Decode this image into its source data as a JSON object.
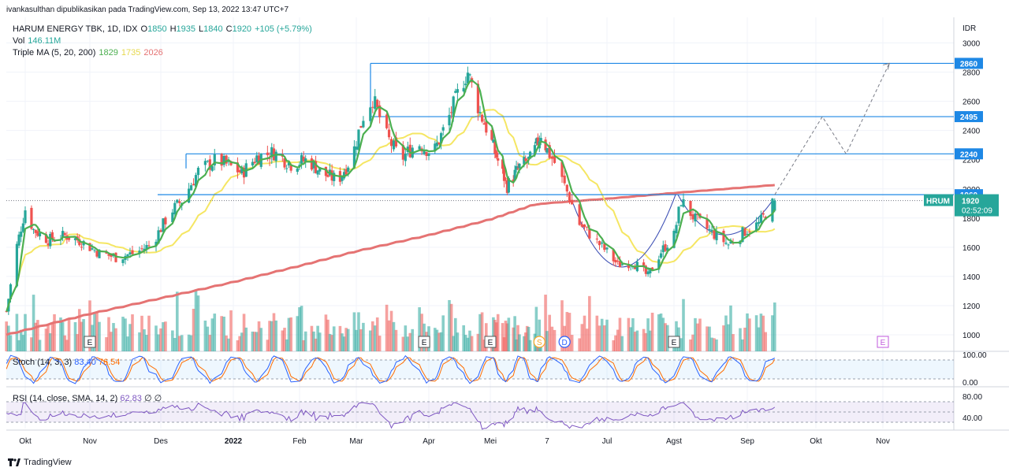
{
  "attribution": "ivankasulthan dipublikasikan pada TradingView.com, Sep 13, 2022 13:47 UTC+7",
  "legend": {
    "symbol": "HARUM ENERGY TBK, 1D, IDX",
    "o_label": "O",
    "o": "1850",
    "h_label": "H",
    "h": "1935",
    "l_label": "L",
    "l": "1840",
    "c_label": "C",
    "c": "1920",
    "change": "+105 (+5.79%)",
    "vol_label": "Vol",
    "vol": "146.11M",
    "ma_label": "Triple MA (5, 20, 200)",
    "ma5": "1829",
    "ma20": "1735",
    "ma200": "2026"
  },
  "stoch": {
    "label": "Stoch (14, 3, 3)",
    "k": "83.40",
    "d": "76.54"
  },
  "rsi": {
    "label": "RSI (14, close, SMA, 14, 2)",
    "value": "62.83",
    "x1": "∅",
    "x2": "∅"
  },
  "brand": "TradingView",
  "colors": {
    "up": "#26a69a",
    "down": "#ef5350",
    "level": "#1e88e5",
    "ma5": "#4caf50",
    "ma20": "#f5e663",
    "ma200": "#e57373",
    "stoch_k": "#2962ff",
    "stoch_d": "#ff6d00",
    "rsi": "#7e57c2"
  },
  "chart_data": [
    {
      "type": "candlestick",
      "currency": "IDR",
      "y_ticks": [
        1000,
        1200,
        1400,
        1600,
        1800,
        2000,
        2200,
        2400,
        2600,
        2800,
        3000
      ],
      "ylim": [
        900,
        3080
      ],
      "x_ticks": [
        "Okt",
        "Nov",
        "Des",
        "2022",
        "Feb",
        "Mar",
        "Apr",
        "Mei",
        "7",
        "Jul",
        "Agst",
        "Sep",
        "Okt",
        "Nov"
      ],
      "horizontal_levels": [
        2860,
        2495,
        2240,
        1960
      ],
      "last_price": {
        "symbol": "HRUM",
        "value": 1920,
        "countdown": "02:52:09"
      },
      "events": [
        "E",
        "E",
        "E",
        "S",
        "D",
        "E",
        "E"
      ],
      "projection_path": [
        {
          "date": "2022-09-13",
          "value": 1960
        },
        {
          "date": "2022-10-04",
          "value": 2495
        },
        {
          "date": "2022-10-15",
          "value": 2240
        },
        {
          "date": "2022-11-04",
          "value": 2860
        }
      ],
      "closes_series": [
        {
          "date": "2021-09-22",
          "value": 1160
        },
        {
          "date": "2021-09-27",
          "value": 1610
        },
        {
          "date": "2021-10-01",
          "value": 1860
        },
        {
          "date": "2021-10-05",
          "value": 1720
        },
        {
          "date": "2021-10-12",
          "value": 1650
        },
        {
          "date": "2021-10-20",
          "value": 1680
        },
        {
          "date": "2021-10-28",
          "value": 1640
        },
        {
          "date": "2021-11-05",
          "value": 1560
        },
        {
          "date": "2021-11-12",
          "value": 1530
        },
        {
          "date": "2021-11-20",
          "value": 1560
        },
        {
          "date": "2021-11-27",
          "value": 1620
        },
        {
          "date": "2021-12-05",
          "value": 1840
        },
        {
          "date": "2021-12-10",
          "value": 1920
        },
        {
          "date": "2021-12-17",
          "value": 2120
        },
        {
          "date": "2021-12-25",
          "value": 2200
        },
        {
          "date": "2022-01-05",
          "value": 2110
        },
        {
          "date": "2022-01-12",
          "value": 2220
        },
        {
          "date": "2022-01-20",
          "value": 2250
        },
        {
          "date": "2022-01-28",
          "value": 2170
        },
        {
          "date": "2022-02-05",
          "value": 2200
        },
        {
          "date": "2022-02-13",
          "value": 2100
        },
        {
          "date": "2022-02-20",
          "value": 2060
        },
        {
          "date": "2022-02-27",
          "value": 2220
        },
        {
          "date": "2022-03-04",
          "value": 2500
        },
        {
          "date": "2022-03-08",
          "value": 2620
        },
        {
          "date": "2022-03-14",
          "value": 2360
        },
        {
          "date": "2022-03-20",
          "value": 2200
        },
        {
          "date": "2022-03-27",
          "value": 2320
        },
        {
          "date": "2022-04-03",
          "value": 2240
        },
        {
          "date": "2022-04-10",
          "value": 2460
        },
        {
          "date": "2022-04-17",
          "value": 2720
        },
        {
          "date": "2022-04-20",
          "value": 2800
        },
        {
          "date": "2022-04-26",
          "value": 2520
        },
        {
          "date": "2022-05-04",
          "value": 2250
        },
        {
          "date": "2022-05-12",
          "value": 2020
        },
        {
          "date": "2022-05-20",
          "value": 2150
        },
        {
          "date": "2022-05-28",
          "value": 2210
        },
        {
          "date": "2022-06-03",
          "value": 2380
        },
        {
          "date": "2022-06-10",
          "value": 2180
        },
        {
          "date": "2022-06-15",
          "value": 1980
        },
        {
          "date": "2022-06-20",
          "value": 1760
        },
        {
          "date": "2022-06-28",
          "value": 1620
        },
        {
          "date": "2022-07-06",
          "value": 1480
        },
        {
          "date": "2022-07-13",
          "value": 1500
        },
        {
          "date": "2022-07-20",
          "value": 1400
        },
        {
          "date": "2022-07-26",
          "value": 1570
        },
        {
          "date": "2022-08-01",
          "value": 1680
        },
        {
          "date": "2022-08-04",
          "value": 1920
        },
        {
          "date": "2022-08-10",
          "value": 1790
        },
        {
          "date": "2022-08-17",
          "value": 1700
        },
        {
          "date": "2022-08-24",
          "value": 1620
        },
        {
          "date": "2022-08-31",
          "value": 1710
        },
        {
          "date": "2022-09-06",
          "value": 1760
        },
        {
          "date": "2022-09-13",
          "value": 1920
        }
      ]
    },
    {
      "type": "line",
      "name": "Stoch (14, 3, 3)",
      "y_ticks": [
        "100.00",
        "0.00"
      ],
      "series": [
        {
          "name": "%K",
          "last": 83.4
        },
        {
          "name": "%D",
          "last": 76.54
        }
      ]
    },
    {
      "type": "line",
      "name": "RSI (14, close, SMA, 14, 2)",
      "y_ticks": [
        "80.00",
        "40.00"
      ],
      "series": [
        {
          "name": "RSI",
          "last": 62.83
        }
      ]
    }
  ]
}
